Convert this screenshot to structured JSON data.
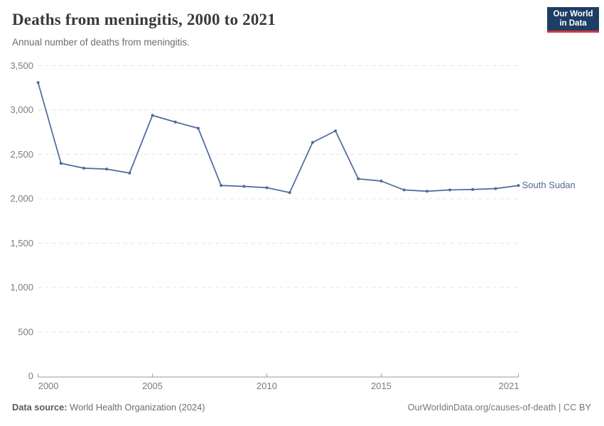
{
  "header": {
    "title": "Deaths from meningitis, 2000 to 2021",
    "subtitle": "Annual number of deaths from meningitis."
  },
  "logo": {
    "line1": "Our World",
    "line2": "in Data",
    "bg_color": "#1d3d63",
    "accent_color": "#d0393e"
  },
  "chart_data": {
    "type": "line",
    "title": "Deaths from meningitis, 2000 to 2021",
    "xlabel": "",
    "ylabel": "",
    "xlim": [
      2000,
      2021
    ],
    "ylim": [
      0,
      3500
    ],
    "grid": "horizontal-dashed",
    "gridline_color": "#e3e3e3",
    "axis_color": "#9a9a9a",
    "legend_position": "end-of-line label",
    "x_ticks": [
      {
        "value": 2000,
        "label": "2000",
        "align": "start"
      },
      {
        "value": 2005,
        "label": "2005",
        "align": "center"
      },
      {
        "value": 2010,
        "label": "2010",
        "align": "center"
      },
      {
        "value": 2015,
        "label": "2015",
        "align": "center"
      },
      {
        "value": 2021,
        "label": "2021",
        "align": "end"
      }
    ],
    "y_ticks": [
      {
        "value": 0,
        "label": "0"
      },
      {
        "value": 500,
        "label": "500"
      },
      {
        "value": 1000,
        "label": "1,000"
      },
      {
        "value": 1500,
        "label": "1,500"
      },
      {
        "value": 2000,
        "label": "2,000"
      },
      {
        "value": 2500,
        "label": "2,500"
      },
      {
        "value": 3000,
        "label": "3,000"
      },
      {
        "value": 3500,
        "label": "3,500"
      }
    ],
    "series": [
      {
        "name": "South Sudan",
        "color": "#4C6A9C",
        "x": [
          2000,
          2001,
          2002,
          2003,
          2004,
          2005,
          2006,
          2007,
          2008,
          2009,
          2010,
          2011,
          2012,
          2013,
          2014,
          2015,
          2016,
          2017,
          2018,
          2019,
          2020,
          2021
        ],
        "values": [
          3310,
          2400,
          2345,
          2335,
          2290,
          2940,
          2865,
          2795,
          2150,
          2140,
          2125,
          2070,
          2635,
          2765,
          2225,
          2200,
          2100,
          2085,
          2100,
          2105,
          2115,
          2150
        ]
      }
    ]
  },
  "footer": {
    "source_label": "Data source:",
    "source_value": "World Health Organization (2024)",
    "credit": "OurWorldinData.org/causes-of-death | CC BY"
  }
}
